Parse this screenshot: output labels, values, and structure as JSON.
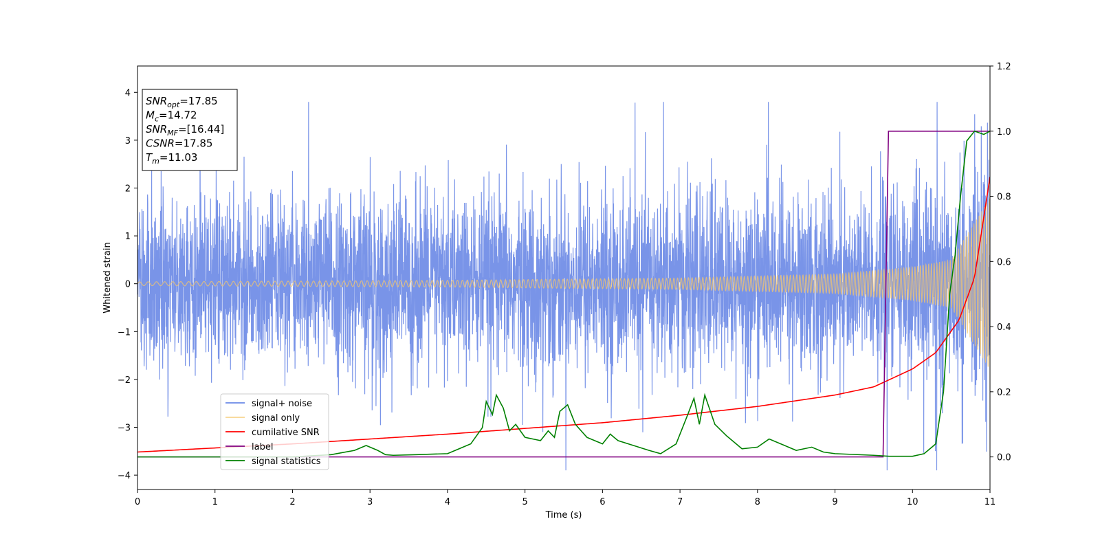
{
  "chart_data": {
    "type": "line",
    "xlabel": "Time (s)",
    "ylabel": "Whitened strain",
    "xlim": [
      0,
      11
    ],
    "ylim": [
      -4.3,
      4.55
    ],
    "y2lim": [
      -0.1,
      1.2
    ],
    "x_ticks": [
      "0",
      "1",
      "2",
      "3",
      "4",
      "5",
      "6",
      "7",
      "8",
      "9",
      "10",
      "11"
    ],
    "y_ticks": [
      "−4",
      "−3",
      "−2",
      "−1",
      "0",
      "1",
      "2",
      "3",
      "4"
    ],
    "y2_ticks": [
      "0.0",
      "0.2",
      "0.4",
      "0.6",
      "0.8",
      "1.0",
      "1.2"
    ],
    "grid": false,
    "legend_position": "lower-left",
    "colors": {
      "noise": "#6a88e6",
      "signal": "#f6c56b",
      "cum_snr": "#ff0000",
      "label": "#800080",
      "stats": "#008000"
    },
    "series": [
      {
        "name": "signal+ noise",
        "axis": "left",
        "description_values": "whitened noise, amplitude about ±2.4 with peaks to 3.8"
      },
      {
        "name": "signal only",
        "axis": "left",
        "chirp_amplitude": {
          "x": [
            0,
            4,
            7,
            9,
            10,
            10.5,
            11
          ],
          "y": [
            0.04,
            0.07,
            0.12,
            0.2,
            0.35,
            0.5,
            1.8
          ]
        }
      },
      {
        "name": "cumilative SNR",
        "axis": "right",
        "x": [
          0,
          2,
          4,
          6,
          7,
          8,
          9,
          9.5,
          10,
          10.3,
          10.6,
          10.8,
          11
        ],
        "y": [
          0.015,
          0.04,
          0.07,
          0.105,
          0.128,
          0.155,
          0.19,
          0.215,
          0.27,
          0.32,
          0.42,
          0.55,
          0.86
        ]
      },
      {
        "name": "label",
        "axis": "right",
        "x": [
          0,
          9.62,
          9.69,
          11
        ],
        "y": [
          0,
          0,
          1,
          1
        ]
      },
      {
        "name": "signal statistics",
        "axis": "right",
        "x": [
          0,
          1,
          2,
          2.5,
          2.8,
          2.95,
          3.1,
          3.2,
          3.3,
          3.6,
          4.0,
          4.15,
          4.3,
          4.45,
          4.5,
          4.58,
          4.63,
          4.72,
          4.8,
          4.88,
          5.0,
          5.2,
          5.3,
          5.38,
          5.45,
          5.55,
          5.65,
          5.8,
          6.0,
          6.1,
          6.2,
          6.4,
          6.6,
          6.75,
          6.95,
          7.1,
          7.18,
          7.25,
          7.32,
          7.45,
          7.6,
          7.8,
          8.0,
          8.15,
          8.3,
          8.5,
          8.7,
          8.85,
          9.0,
          9.5,
          9.7,
          10.0,
          10.15,
          10.3,
          10.4,
          10.48,
          10.55,
          10.62,
          10.7,
          10.8,
          10.92,
          11
        ],
        "y": [
          0,
          0,
          0,
          0.007,
          0.02,
          0.035,
          0.02,
          0.007,
          0.005,
          0.007,
          0.01,
          0.025,
          0.04,
          0.09,
          0.17,
          0.13,
          0.19,
          0.15,
          0.08,
          0.1,
          0.06,
          0.05,
          0.08,
          0.06,
          0.14,
          0.16,
          0.1,
          0.06,
          0.04,
          0.07,
          0.05,
          0.035,
          0.02,
          0.01,
          0.04,
          0.13,
          0.18,
          0.1,
          0.19,
          0.1,
          0.065,
          0.025,
          0.03,
          0.055,
          0.04,
          0.02,
          0.03,
          0.015,
          0.01,
          0.005,
          0.002,
          0.002,
          0.01,
          0.04,
          0.2,
          0.5,
          0.62,
          0.8,
          0.97,
          1.0,
          0.99,
          1.0
        ]
      }
    ],
    "annotation": {
      "lines": [
        {
          "base": "SNR",
          "sub": "opt",
          "value": "=17.85"
        },
        {
          "base": "M",
          "sub": "c",
          "value": "=14.72"
        },
        {
          "base": "SNR",
          "sub": "MF",
          "value": "=[16.44]"
        },
        {
          "base": "CSNR",
          "sub": "",
          "value": "=17.85"
        },
        {
          "base": "T",
          "sub": "m",
          "value": "=11.03"
        }
      ]
    }
  }
}
